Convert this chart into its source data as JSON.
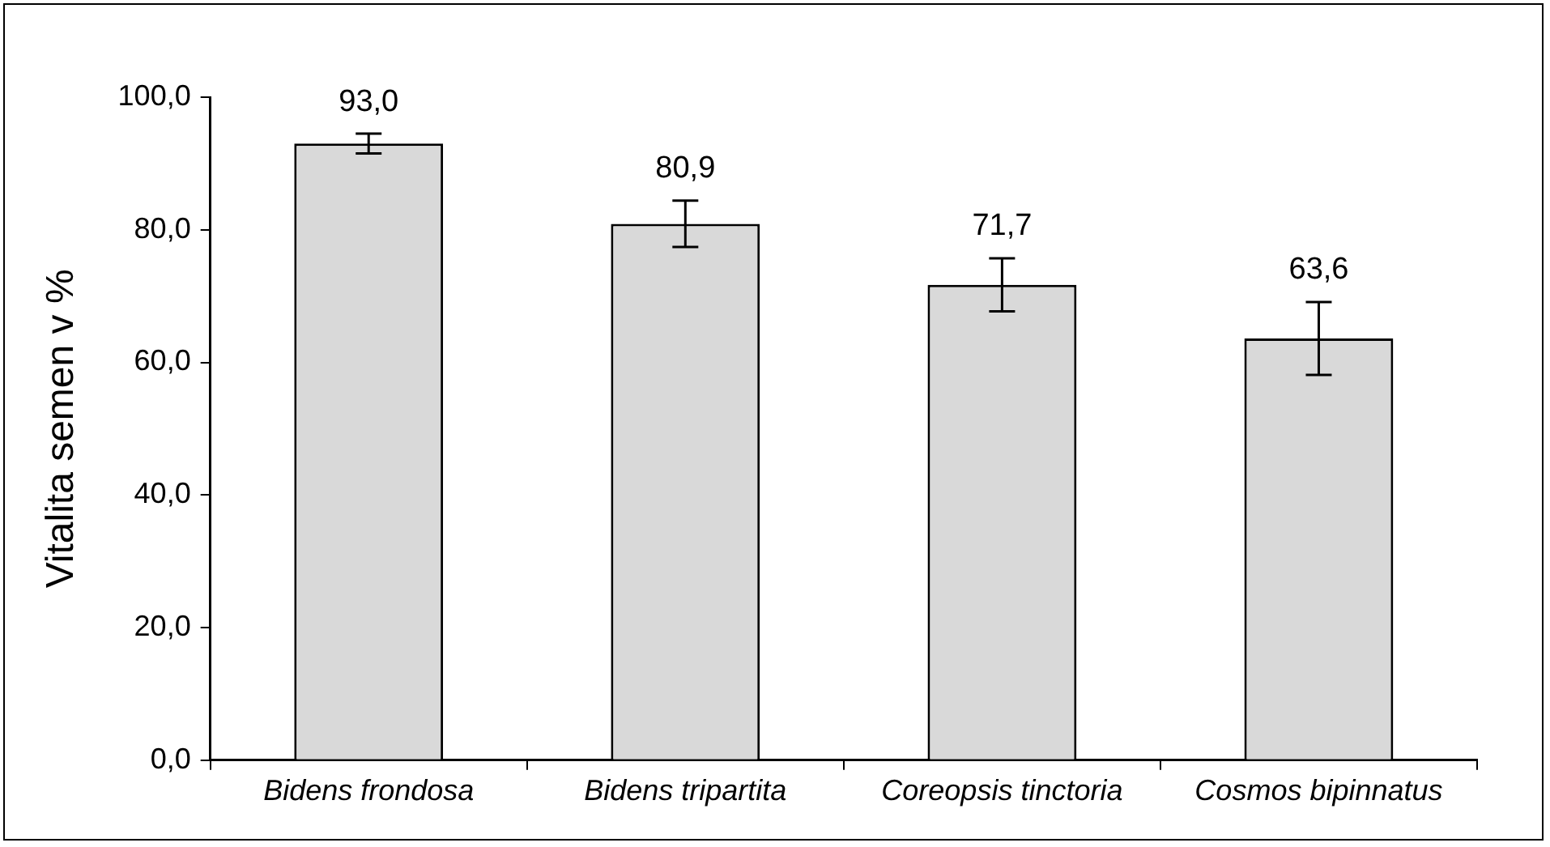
{
  "chart_data": {
    "type": "bar",
    "ylabel": "Vitalita semen v %",
    "categories": [
      "Bidens frondosa",
      "Bidens tripartita",
      "Coreopsis tinctoria",
      "Cosmos bipinnatus"
    ],
    "values": [
      93.0,
      80.9,
      71.7,
      63.6
    ],
    "value_labels": [
      "93,0",
      "80,9",
      "71,7",
      "63,6"
    ],
    "errors": [
      1.5,
      3.5,
      4.0,
      5.5
    ],
    "color": "#d9d9d9",
    "ylim": [
      0,
      100
    ],
    "yticks": [
      {
        "value": 0,
        "label": "0,0"
      },
      {
        "value": 20,
        "label": "20,0"
      },
      {
        "value": 40,
        "label": "40,0"
      },
      {
        "value": 60,
        "label": "60,0"
      },
      {
        "value": 80,
        "label": "80,0"
      },
      {
        "value": 100,
        "label": "100,0"
      }
    ],
    "grid": false,
    "legend": false
  }
}
